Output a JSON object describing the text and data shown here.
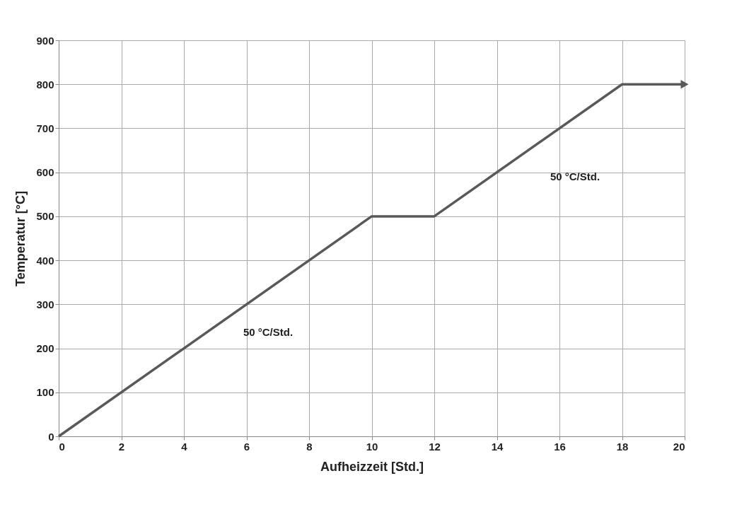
{
  "chart_data": {
    "type": "line",
    "xlabel": "Aufheizzeit [Std.]",
    "ylabel": "Temperatur [°C]",
    "x": [
      0,
      10,
      12,
      18,
      20
    ],
    "series": [
      {
        "color": "#595959",
        "values": [
          0,
          500,
          500,
          800,
          800
        ]
      }
    ],
    "xlim": [
      0,
      20
    ],
    "xticks": [
      0,
      2,
      4,
      6,
      8,
      10,
      12,
      14,
      16,
      18,
      20
    ],
    "ylim": [
      0,
      900
    ],
    "yticks": [
      0,
      100,
      200,
      300,
      400,
      500,
      600,
      700,
      800,
      900
    ],
    "grid": true,
    "marker": "none",
    "line_style": "solid",
    "annotations": [
      "50 °C/Std.",
      "50 °C/Std."
    ]
  }
}
